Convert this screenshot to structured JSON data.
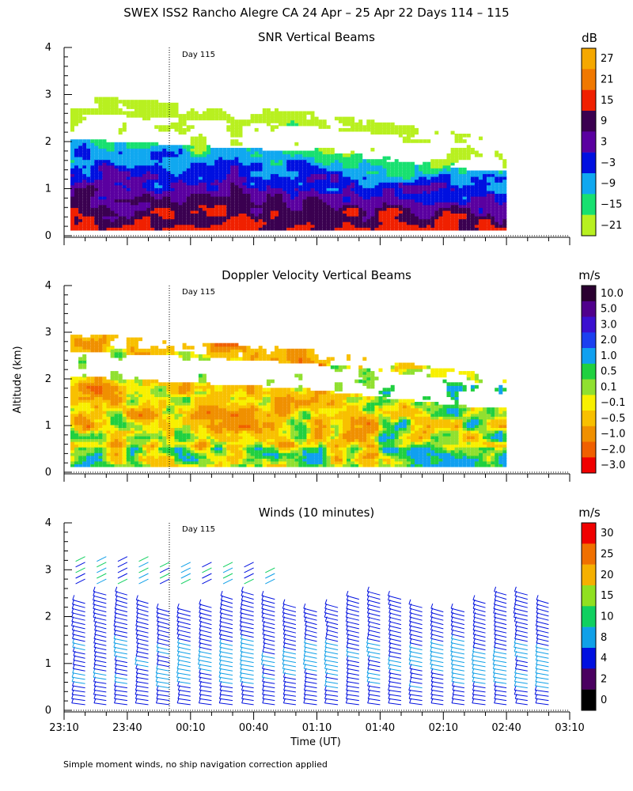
{
  "chart_data": {
    "type": "heatmap",
    "title": "SWEX ISS2 Rancho Alegre CA  24 Apr – 25 Apr 22 Days 114 – 115",
    "ylabel": "Altitude (km)",
    "xlabel": "Time (UT)",
    "footnote": "Simple moment winds, no ship navigation correction applied",
    "x_tick_labels": [
      "23:10",
      "23:40",
      "00:10",
      "00:40",
      "01:10",
      "01:40",
      "02:10",
      "02:40",
      "03:10"
    ],
    "y_tick_labels": [
      "0",
      "1",
      "2",
      "3",
      "4"
    ],
    "ylim": [
      0,
      4
    ],
    "day_marker": {
      "label": "Day 115",
      "time": "00:05"
    },
    "panels": [
      {
        "id": "snr",
        "title": "SNR Vertical Beams",
        "type": "heatmap",
        "unit": "dB",
        "colorbar": {
          "labels": [
            "27",
            "21",
            "15",
            "9",
            "3",
            "−3",
            "−9",
            "−15",
            "−21"
          ],
          "colors": [
            "#f5a800",
            "#f07800",
            "#f02000",
            "#3a0050",
            "#5a00a0",
            "#0010e0",
            "#10a8f0",
            "#18e070",
            "#b8f020"
          ]
        },
        "echo_top_km": [
          2.9,
          2.9,
          2.85,
          2.8,
          2.75,
          2.7,
          2.65,
          2.6,
          2.5,
          2.4,
          2.3,
          2.2,
          2.1,
          2.1
        ],
        "description": "Layered echo: strongest (9–21 dB) below 0.8 km, weak returns near 2–3 km top"
      },
      {
        "id": "doppler",
        "title": "Doppler Velocity Vertical Beams",
        "type": "heatmap",
        "unit": "m/s",
        "colorbar": {
          "labels": [
            "10.0",
            "5.0",
            "3.0",
            "2.0",
            "1.0",
            "0.5",
            "0.1",
            "−0.1",
            "−0.5",
            "−1.0",
            "−2.0",
            "−3.0"
          ],
          "colors": [
            "#2a0030",
            "#50008c",
            "#3a10d0",
            "#1c40f0",
            "#10a0f0",
            "#20d040",
            "#90e030",
            "#f8f000",
            "#f8c000",
            "#f09000",
            "#f06000",
            "#f00000"
          ]
        },
        "description": "Mostly weak downward motion (−0.1 to −1.0 m/s) below 2 km"
      },
      {
        "id": "winds",
        "title": "Winds (10 minutes)",
        "type": "wind_barbs",
        "unit": "m/s",
        "colorbar": {
          "labels": [
            "30",
            "25",
            "20",
            "15",
            "10",
            "8",
            "4",
            "2",
            "0"
          ],
          "colors": [
            "#f00000",
            "#f07000",
            "#f5b000",
            "#90e020",
            "#10d060",
            "#10a0e8",
            "#0010e0",
            "#4a0060",
            "#000000"
          ]
        },
        "profile_times_min": [
          10,
          20,
          30,
          40,
          50,
          60,
          70,
          80,
          90,
          100,
          110,
          120,
          130,
          140,
          150,
          160,
          170,
          180,
          190,
          200,
          210,
          220,
          230
        ],
        "description": "Wind barb profiles every 10 minutes from 0.1 to ~2.5 km, upper barbs to 3.5 km early in the period"
      }
    ]
  }
}
